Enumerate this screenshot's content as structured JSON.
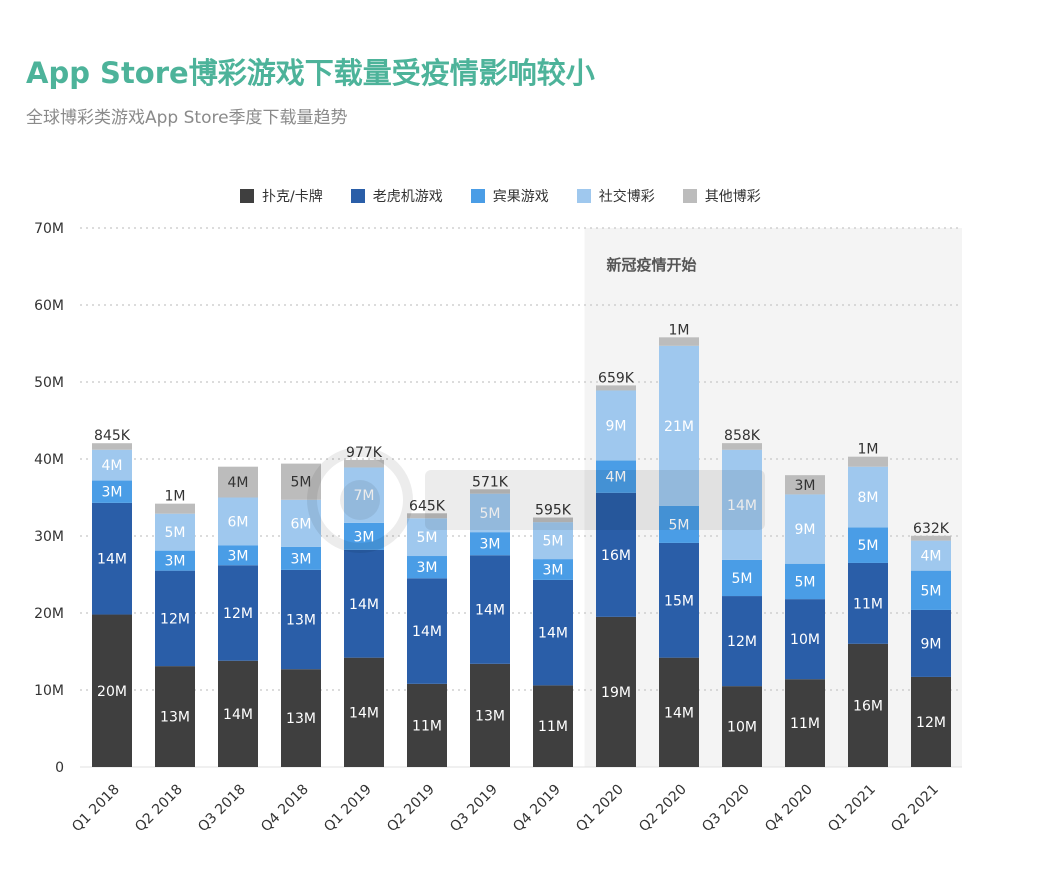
{
  "header": {
    "title": "App Store博彩游戏下载量受疫情影响较小",
    "subtitle": "全球博彩类游戏App Store季度下载量趋势"
  },
  "annotation": {
    "label": "新冠疫情开始",
    "start_index": 8
  },
  "colors": {
    "poker": "#3f3f3f",
    "slots": "#2a5ea8",
    "bingo": "#4a9de6",
    "social": "#9fc8ee",
    "other": "#bcbcbc",
    "title": "#4db39a",
    "shade": "#f4f4f4"
  },
  "chart_data": {
    "type": "bar",
    "stacked": true,
    "categories": [
      "Q1 2018",
      "Q2 2018",
      "Q3 2018",
      "Q4 2018",
      "Q1 2019",
      "Q2 2019",
      "Q3 2019",
      "Q4 2019",
      "Q1 2020",
      "Q2 2020",
      "Q3 2020",
      "Q4 2020",
      "Q1 2021",
      "Q2 2021"
    ],
    "ylim": [
      0,
      70
    ],
    "y_unit": "M",
    "y_ticks": [
      "0",
      "10M",
      "20M",
      "30M",
      "40M",
      "50M",
      "60M",
      "70M"
    ],
    "grid": "horizontal dotted",
    "legend_position": "top",
    "series": [
      {
        "name": "扑克/卡牌",
        "color_key": "poker",
        "values": [
          19.8,
          13.1,
          13.8,
          12.7,
          14.2,
          10.8,
          13.4,
          10.6,
          19.5,
          14.2,
          10.5,
          11.4,
          16.0,
          11.7
        ],
        "labels": [
          "20M",
          "13M",
          "14M",
          "13M",
          "14M",
          "11M",
          "13M",
          "11M",
          "19M",
          "14M",
          "10M",
          "11M",
          "16M",
          "12M"
        ]
      },
      {
        "name": "老虎机游戏",
        "color_key": "slots",
        "values": [
          14.5,
          12.4,
          12.4,
          12.9,
          14.0,
          13.7,
          14.1,
          13.7,
          16.1,
          14.9,
          11.7,
          10.4,
          10.5,
          8.7
        ],
        "labels": [
          "14M",
          "12M",
          "12M",
          "13M",
          "14M",
          "14M",
          "14M",
          "14M",
          "16M",
          "15M",
          "12M",
          "10M",
          "11M",
          "9M"
        ]
      },
      {
        "name": "宾果游戏",
        "color_key": "bingo",
        "values": [
          2.9,
          2.6,
          2.6,
          3.0,
          3.5,
          2.9,
          3.0,
          2.7,
          4.2,
          4.8,
          4.7,
          4.6,
          4.6,
          5.1
        ],
        "labels": [
          "3M",
          "3M",
          "3M",
          "3M",
          "3M",
          "3M",
          "3M",
          "3M",
          "4M",
          "5M",
          "5M",
          "5M",
          "5M",
          "5M"
        ]
      },
      {
        "name": "社交博彩",
        "color_key": "social",
        "values": [
          4.0,
          4.8,
          6.2,
          6.1,
          7.2,
          4.9,
          5.0,
          4.8,
          9.1,
          20.8,
          14.3,
          9.0,
          7.9,
          3.9
        ],
        "labels": [
          "4M",
          "5M",
          "6M",
          "6M",
          "7M",
          "5M",
          "5M",
          "5M",
          "9M",
          "21M",
          "14M",
          "9M",
          "8M",
          "4M"
        ]
      },
      {
        "name": "其他博彩",
        "color_key": "other",
        "values": [
          0.85,
          1.3,
          4.0,
          4.7,
          0.98,
          0.65,
          0.57,
          0.6,
          0.66,
          1.1,
          0.86,
          2.5,
          1.3,
          0.63
        ],
        "labels": [
          "845K",
          "1M",
          "4M",
          "5M",
          "977K",
          "645K",
          "571K",
          "595K",
          "659K",
          "1M",
          "858K",
          "3M",
          "1M",
          "632K"
        ]
      }
    ]
  }
}
